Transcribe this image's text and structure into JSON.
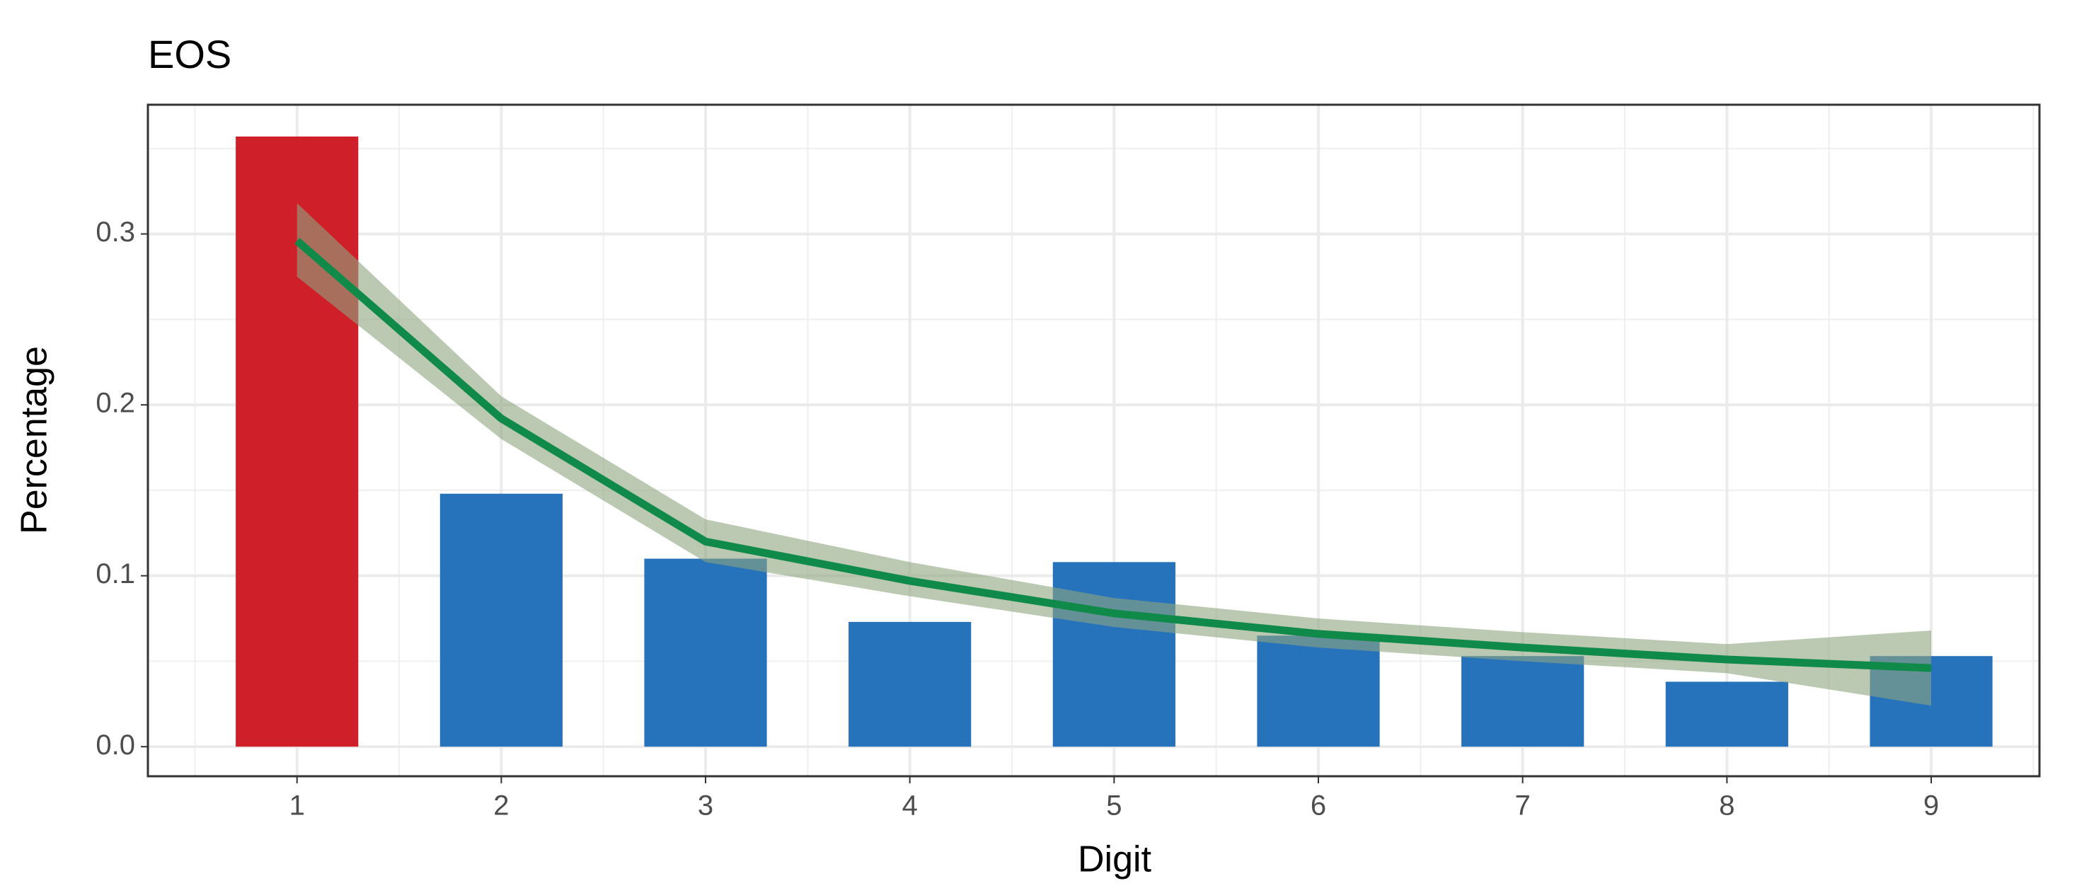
{
  "chart_data": {
    "type": "bar",
    "title": "EOS",
    "x_label": "Digit",
    "y_label": "Percentage",
    "x": [
      1,
      2,
      3,
      4,
      5,
      6,
      7,
      8,
      9
    ],
    "values": [
      0.357,
      0.148,
      0.11,
      0.073,
      0.108,
      0.065,
      0.053,
      0.038,
      0.053
    ],
    "colors": [
      "#cf2029",
      "#2672bb",
      "#2672bb",
      "#2672bb",
      "#2672bb",
      "#2672bb",
      "#2672bb",
      "#2672bb",
      "#2672bb"
    ],
    "smooth": {
      "color": "#0f8a49",
      "values": [
        0.296,
        0.192,
        0.12,
        0.097,
        0.078,
        0.066,
        0.058,
        0.051,
        0.046
      ]
    },
    "ribbon": {
      "color": "#8ea57f",
      "lower": [
        0.275,
        0.18,
        0.108,
        0.088,
        0.07,
        0.058,
        0.05,
        0.043,
        0.024
      ],
      "upper": [
        0.318,
        0.205,
        0.133,
        0.108,
        0.087,
        0.075,
        0.067,
        0.06,
        0.068
      ]
    },
    "xlim": [
      0.27,
      9.53
    ],
    "ylim": [
      -0.0173,
      0.3756
    ],
    "xticks": [
      1,
      2,
      3,
      4,
      5,
      6,
      7,
      8,
      9
    ],
    "yticks": [
      {
        "value": 0,
        "label": "0.0"
      },
      0.1,
      0.2,
      0.3
    ],
    "grid": true,
    "minor_grid": true
  }
}
